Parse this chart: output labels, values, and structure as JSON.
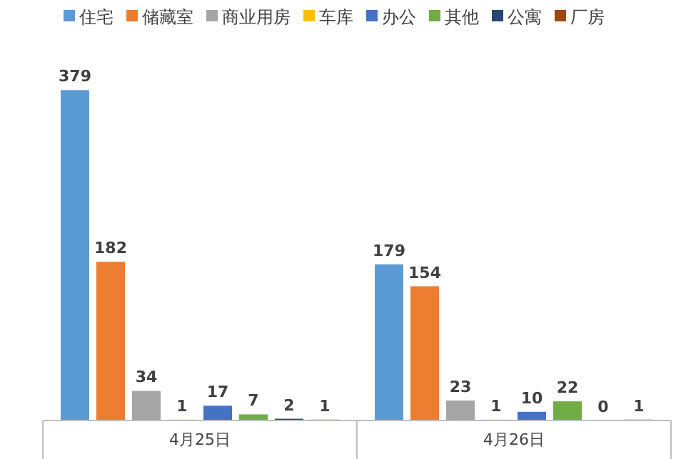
{
  "chart_data": {
    "type": "bar",
    "categories": [
      "4月25日",
      "4月26日"
    ],
    "data_labels": true,
    "legend": "top",
    "series": [
      {
        "name": "住宅",
        "color": "#5b9bd5",
        "values": [
          379,
          179
        ]
      },
      {
        "name": "储藏室",
        "color": "#ed7d31",
        "values": [
          182,
          154
        ]
      },
      {
        "name": "商业用房",
        "color": "#a5a5a5",
        "values": [
          34,
          23
        ]
      },
      {
        "name": "车库",
        "color": "#ffc000",
        "values": [
          1,
          1
        ]
      },
      {
        "name": "办公",
        "color": "#4472c4",
        "values": [
          17,
          10
        ]
      },
      {
        "name": "其他",
        "color": "#70ad47",
        "values": [
          7,
          22
        ]
      },
      {
        "name": "公寓",
        "color": "#264478",
        "values": [
          2,
          0
        ]
      },
      {
        "name": "厂房",
        "color": "#9e480e",
        "values": [
          1,
          1
        ]
      }
    ]
  }
}
